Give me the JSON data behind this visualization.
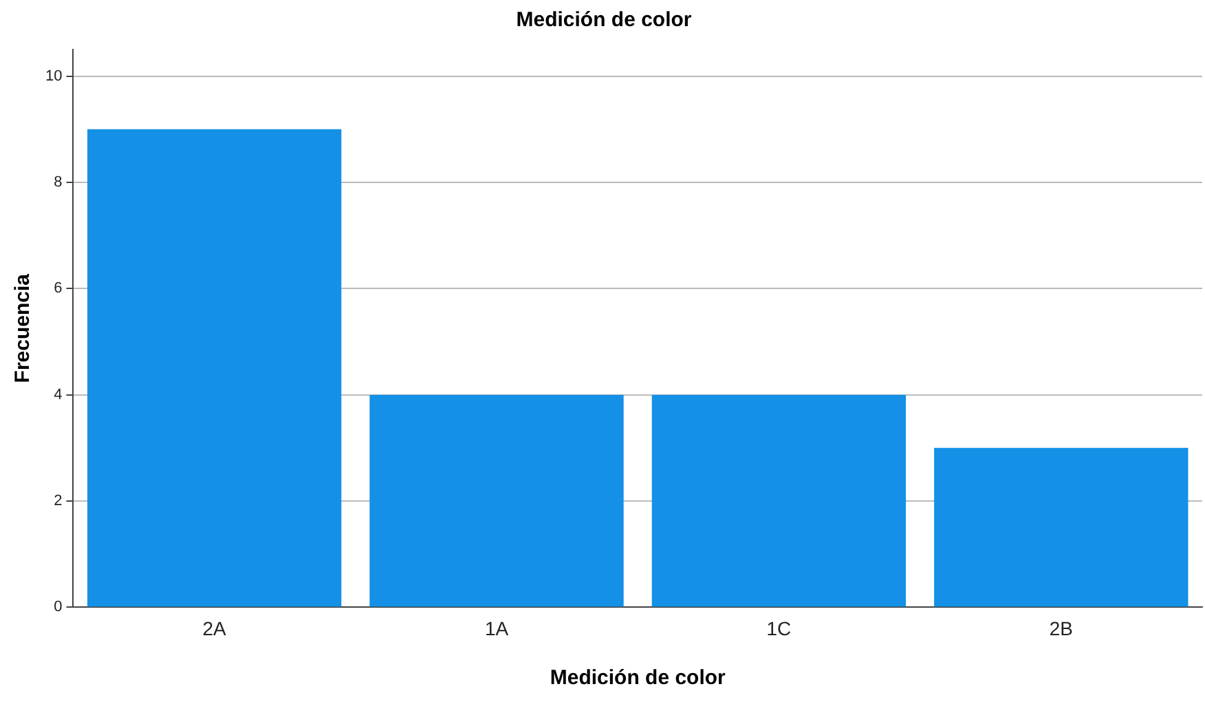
{
  "chart_data": {
    "type": "bar",
    "title": "Medición de color",
    "xlabel": "Medición de color",
    "ylabel": "Frecuencia",
    "categories": [
      "2A",
      "1A",
      "1C",
      "2B"
    ],
    "values": [
      9,
      4,
      4,
      3
    ],
    "color": "#1490e6",
    "ylim": [
      0,
      10.5
    ],
    "yticks": [
      0,
      2,
      4,
      6,
      8,
      10
    ],
    "grid": "y",
    "legend": false
  }
}
